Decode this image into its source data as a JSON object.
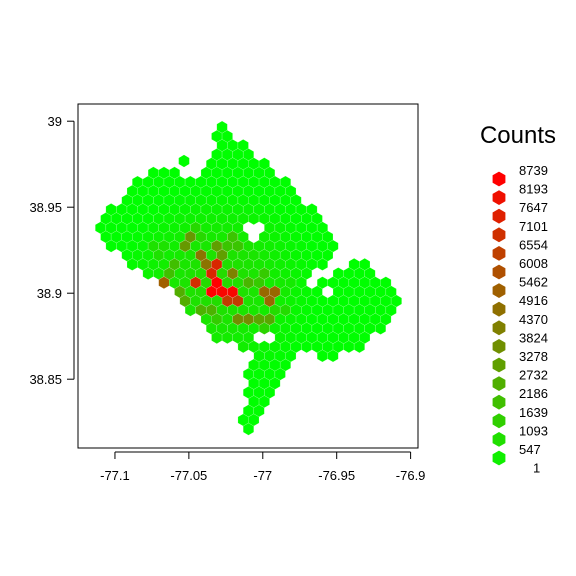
{
  "chart_data": {
    "type": "heatmap",
    "subtype": "hexbin",
    "title": "",
    "xlabel": "",
    "ylabel": "",
    "xlim": [
      -77.125,
      -76.895
    ],
    "ylim": [
      38.81,
      39.01
    ],
    "x_ticks": [
      -77.1,
      -77.05,
      -77.0,
      -76.95,
      -76.9
    ],
    "x_tick_labels": [
      "-77.1",
      "-77.05",
      "-77",
      "-76.95",
      "-76.9"
    ],
    "y_ticks": [
      38.85,
      38.9,
      38.95,
      39.0
    ],
    "y_tick_labels": [
      "38.85",
      "38.9",
      "38.95",
      "39"
    ],
    "grid": false,
    "legend": {
      "title": "Counts",
      "placement": "right",
      "breaks": [
        8739,
        8193,
        7647,
        7101,
        6554,
        6008,
        5462,
        4916,
        4370,
        3824,
        3278,
        2732,
        2186,
        1639,
        1093,
        547,
        1
      ],
      "labels": [
        "8739",
        "8193",
        "7647",
        "7101",
        "6554",
        "6008",
        "5462",
        "4916",
        "4370",
        "3824",
        "3278",
        "2732",
        "2186",
        "1639",
        "1093",
        "547",
        "1"
      ]
    },
    "color_low": "#00ff00",
    "color_high": "#ff0000",
    "cells": [
      {
        "x": -77.03,
        "y": 38.903,
        "count": 8739
      },
      {
        "x": -77.025,
        "y": 38.901,
        "count": 8500
      },
      {
        "x": -77.035,
        "y": 38.914,
        "count": 7400
      },
      {
        "x": -77.045,
        "y": 38.905,
        "count": 7200
      },
      {
        "x": -77.02,
        "y": 38.896,
        "count": 6600
      },
      {
        "x": -77.065,
        "y": 38.905,
        "count": 5500
      },
      {
        "x": -76.995,
        "y": 38.899,
        "count": 5200
      },
      {
        "x": -77.04,
        "y": 38.92,
        "count": 4800
      },
      {
        "x": -77.02,
        "y": 38.912,
        "count": 4300
      },
      {
        "x": -77.012,
        "y": 38.885,
        "count": 3900
      },
      {
        "x": -77.05,
        "y": 38.93,
        "count": 3500
      },
      {
        "x": -77.03,
        "y": 38.925,
        "count": 3300
      },
      {
        "x": -77.0,
        "y": 38.885,
        "count": 3000
      },
      {
        "x": -77.055,
        "y": 38.898,
        "count": 2800
      },
      {
        "x": -77.04,
        "y": 38.89,
        "count": 2600
      },
      {
        "x": -77.01,
        "y": 38.905,
        "count": 2500
      },
      {
        "x": -77.06,
        "y": 38.915,
        "count": 2200
      },
      {
        "x": -77.02,
        "y": 38.93,
        "count": 2000
      },
      {
        "x": -77.0,
        "y": 38.91,
        "count": 1800
      },
      {
        "x": -77.03,
        "y": 38.885,
        "count": 1700
      },
      {
        "x": -77.0,
        "y": 38.875,
        "count": 1500
      },
      {
        "x": -77.045,
        "y": 38.935,
        "count": 1300
      },
      {
        "x": -76.99,
        "y": 38.89,
        "count": 1200
      },
      {
        "x": -77.07,
        "y": 38.925,
        "count": 1000
      },
      {
        "x": -77.01,
        "y": 38.925,
        "count": 900
      },
      {
        "x": -77.05,
        "y": 38.88,
        "count": 800
      },
      {
        "x": -76.985,
        "y": 38.905,
        "count": 700
      },
      {
        "x": -77.075,
        "y": 38.905,
        "count": 600
      },
      {
        "x": -77.015,
        "y": 38.872,
        "count": 600
      }
    ]
  }
}
